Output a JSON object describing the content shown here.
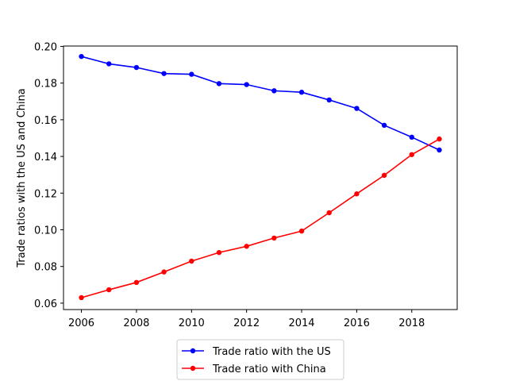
{
  "chart_data": {
    "type": "line",
    "title": "",
    "xlabel": "",
    "ylabel": "Trade ratios with the US and China",
    "x": [
      2006,
      2007,
      2008,
      2009,
      2010,
      2011,
      2012,
      2013,
      2014,
      2015,
      2016,
      2017,
      2018,
      2019
    ],
    "xlim": [
      2005.35,
      2019.65
    ],
    "ylim": [
      0.0565,
      0.2002
    ],
    "xticks": [
      2006,
      2008,
      2010,
      2012,
      2014,
      2016,
      2018
    ],
    "xtick_labels": [
      "2006",
      "2008",
      "2010",
      "2012",
      "2014",
      "2016",
      "2018"
    ],
    "yticks": [
      0.06,
      0.08,
      0.1,
      0.12,
      0.14,
      0.16,
      0.18,
      0.2
    ],
    "ytick_labels": [
      "0.06",
      "0.08",
      "0.10",
      "0.12",
      "0.14",
      "0.16",
      "0.18",
      "0.20"
    ],
    "grid": false,
    "legend_position": "below-center",
    "series": [
      {
        "name": "Trade ratio with the US",
        "color": "#0000ff",
        "marker": "circle",
        "values": [
          0.1945,
          0.1905,
          0.1885,
          0.1852,
          0.1848,
          0.1797,
          0.1792,
          0.1758,
          0.175,
          0.1708,
          0.1662,
          0.157,
          0.1505,
          0.1435
        ]
      },
      {
        "name": "Trade ratio with China",
        "color": "#ff0000",
        "marker": "circle",
        "values": [
          0.063,
          0.0673,
          0.0713,
          0.077,
          0.0829,
          0.0876,
          0.091,
          0.0955,
          0.0993,
          0.1093,
          0.1196,
          0.1297,
          0.141,
          0.1495
        ]
      }
    ]
  }
}
